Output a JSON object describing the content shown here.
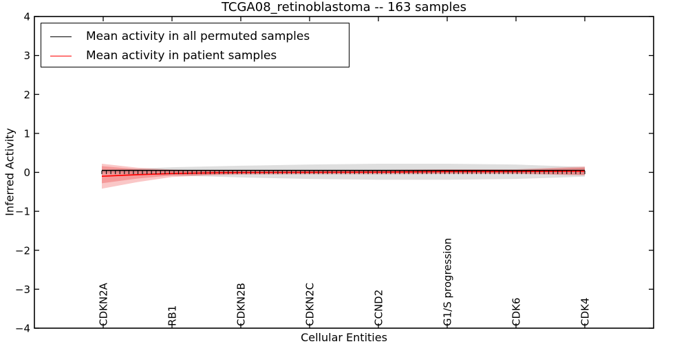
{
  "chart_data": {
    "type": "line",
    "title": "TCGA08_retinoblastoma -- 163 samples",
    "xlabel": "Cellular Entities",
    "ylabel": "Inferred Activity",
    "ylim": [
      -4,
      4
    ],
    "xlim": [
      0,
      9
    ],
    "grid": false,
    "legend_position": "upper left",
    "y_tick_values": [
      4,
      3,
      2,
      1,
      0,
      -1,
      -2,
      -3,
      -4
    ],
    "y_tick_labels": [
      "4",
      "3",
      "2",
      "1",
      "0",
      "−1",
      "−2",
      "−3",
      "−4"
    ],
    "x_tick_positions": [
      1,
      2,
      3,
      4,
      5,
      6,
      7,
      8
    ],
    "x_tick_labels": [
      "CDKN2A",
      "RB1",
      "CDKN2B",
      "CDKN2C",
      "CCND2",
      "G1/S progression",
      "CDK6",
      "CDK4"
    ],
    "legend": [
      {
        "label": "Mean activity in all permuted samples",
        "color": "#000000"
      },
      {
        "label": "Mean activity in patient samples",
        "color": "#ff0000"
      }
    ],
    "series": [
      {
        "name": "Mean activity in all permuted samples",
        "color": "#000000",
        "width": 1.6,
        "x": [
          0.98,
          8.0
        ],
        "values": [
          0.05,
          0.05
        ]
      },
      {
        "name": "Mean activity in patient samples",
        "color": "#ff0000",
        "width": 1.7,
        "x": [
          0.98,
          1.5,
          2,
          2.5,
          3,
          4,
          5,
          6,
          7,
          8
        ],
        "values": [
          -0.1,
          -0.06,
          -0.03,
          -0.015,
          -0.005,
          0.0,
          0.005,
          0.02,
          0.02,
          0.03
        ]
      }
    ],
    "bands": [
      {
        "name": "permuted-samples-range",
        "color": "rgba(110,110,110,0.22)",
        "x": [
          0.98,
          2,
          3,
          4,
          5,
          6,
          7,
          8
        ],
        "upper": [
          0.06,
          0.13,
          0.17,
          0.2,
          0.22,
          0.22,
          0.2,
          0.14
        ],
        "lower": [
          -0.02,
          -0.08,
          -0.13,
          -0.17,
          -0.19,
          -0.19,
          -0.17,
          -0.11
        ]
      },
      {
        "name": "patient-samples-range-outer",
        "color": "rgba(235,40,40,0.26)",
        "x": [
          0.98,
          1.5,
          2,
          2.5,
          3,
          4,
          5,
          6,
          7,
          8
        ],
        "upper": [
          0.22,
          0.12,
          0.07,
          0.05,
          0.05,
          0.05,
          0.06,
          0.08,
          0.08,
          0.15
        ],
        "lower": [
          -0.42,
          -0.25,
          -0.12,
          -0.08,
          -0.06,
          -0.05,
          -0.05,
          -0.04,
          -0.04,
          -0.08
        ]
      },
      {
        "name": "patient-samples-range-inner",
        "color": "rgba(235,40,40,0.28)",
        "x": [
          0.98,
          1.5,
          2,
          3,
          4,
          5,
          6,
          7,
          8
        ],
        "upper": [
          0.16,
          0.08,
          0.05,
          0.03,
          0.03,
          0.04,
          0.06,
          0.06,
          0.12
        ],
        "lower": [
          -0.28,
          -0.16,
          -0.08,
          -0.04,
          -0.03,
          -0.03,
          -0.03,
          -0.03,
          -0.06
        ]
      }
    ],
    "markers": {
      "shape": "vertical-dash",
      "color": "#111111",
      "count": 108,
      "x_start": 0.98,
      "x_end": 8.0,
      "value": 0.0
    }
  }
}
